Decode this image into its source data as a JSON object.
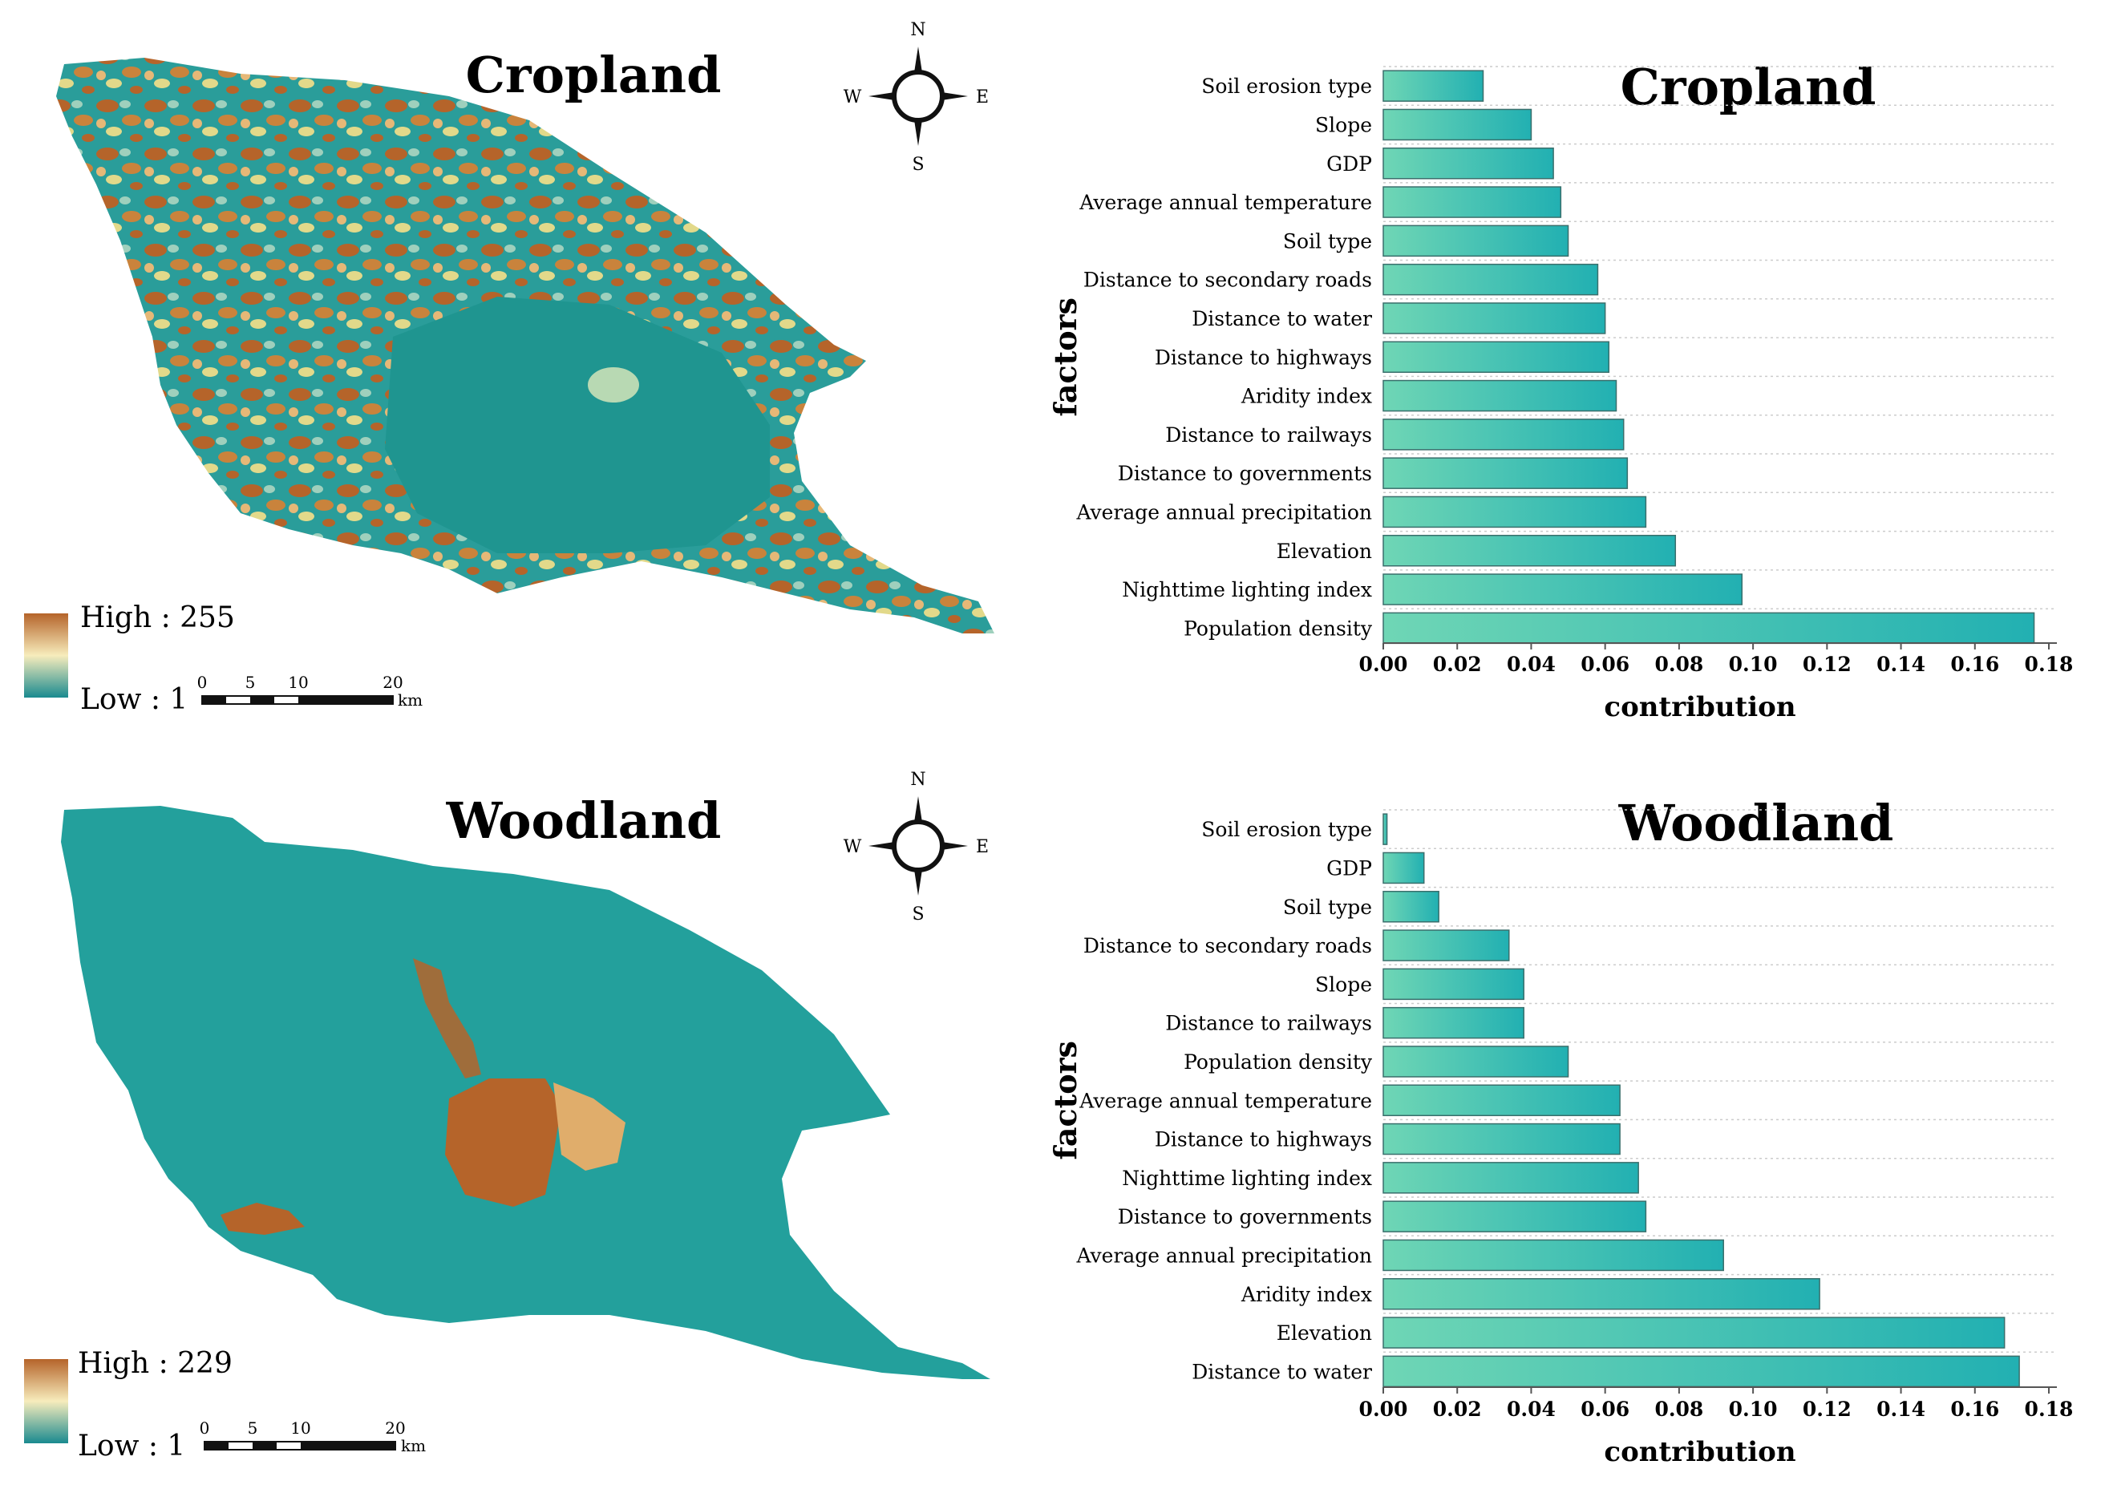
{
  "colors": {
    "teal": "#1f9e9b",
    "teal_dark": "#1a8a8f",
    "bar_light": "#6fd6b5",
    "bar_dark": "#2cb5b3",
    "brown": "#b5642a",
    "tan": "#e6b877",
    "cream": "#f7ecbc",
    "yellow": "#e2d98a",
    "grid": "#cccccc"
  },
  "maps": [
    {
      "title": "Cropland",
      "legend_high": "High : 255",
      "legend_low": "Low : 1",
      "scale_labels": [
        "0",
        "5",
        "10",
        "20"
      ],
      "scale_unit": "km",
      "compass": {
        "n": "N",
        "s": "S",
        "e": "E",
        "w": "W"
      }
    },
    {
      "title": "Woodland",
      "legend_high": "High : 229",
      "legend_low": "Low : 1",
      "scale_labels": [
        "0",
        "5",
        "10",
        "20"
      ],
      "scale_unit": "km",
      "compass": {
        "n": "N",
        "s": "S",
        "e": "E",
        "w": "W"
      }
    }
  ],
  "chart_data": [
    {
      "type": "bar",
      "orientation": "horizontal",
      "title": "Cropland",
      "xlabel": "contribution",
      "ylabel": "factors",
      "xlim": [
        0,
        0.18
      ],
      "xticks": [
        "0.00",
        "0.02",
        "0.04",
        "0.06",
        "0.08",
        "0.10",
        "0.12",
        "0.14",
        "0.16",
        "0.18"
      ],
      "grid": "horizontal dotted",
      "categories": [
        "Soil erosion type",
        "Slope",
        "GDP",
        "Average annual temperature",
        "Soil type",
        "Distance to secondary roads",
        "Distance to water",
        "Distance to highways",
        "Aridity index",
        "Distance to railways",
        "Distance to governments",
        "Average annual precipitation",
        "Elevation",
        "Nighttime lighting index",
        "Population density"
      ],
      "values": [
        0.027,
        0.04,
        0.046,
        0.048,
        0.05,
        0.058,
        0.06,
        0.061,
        0.063,
        0.065,
        0.066,
        0.071,
        0.079,
        0.097,
        0.176
      ]
    },
    {
      "type": "bar",
      "orientation": "horizontal",
      "title": "Woodland",
      "xlabel": "contribution",
      "ylabel": "factors",
      "xlim": [
        0,
        0.18
      ],
      "xticks": [
        "0.00",
        "0.02",
        "0.04",
        "0.06",
        "0.08",
        "0.10",
        "0.12",
        "0.14",
        "0.16",
        "0.18"
      ],
      "grid": "horizontal dotted",
      "categories": [
        "Soil erosion type",
        "GDP",
        "Soil type",
        "Distance to secondary roads",
        "Slope",
        "Distance to railways",
        "Population density",
        "Average annual temperature",
        "Distance to highways",
        "Nighttime lighting index",
        "Distance to governments",
        "Average annual precipitation",
        "Aridity index",
        "Elevation",
        "Distance to water"
      ],
      "values": [
        0.001,
        0.011,
        0.015,
        0.034,
        0.038,
        0.038,
        0.05,
        0.064,
        0.064,
        0.069,
        0.071,
        0.092,
        0.118,
        0.168,
        0.172
      ]
    }
  ]
}
